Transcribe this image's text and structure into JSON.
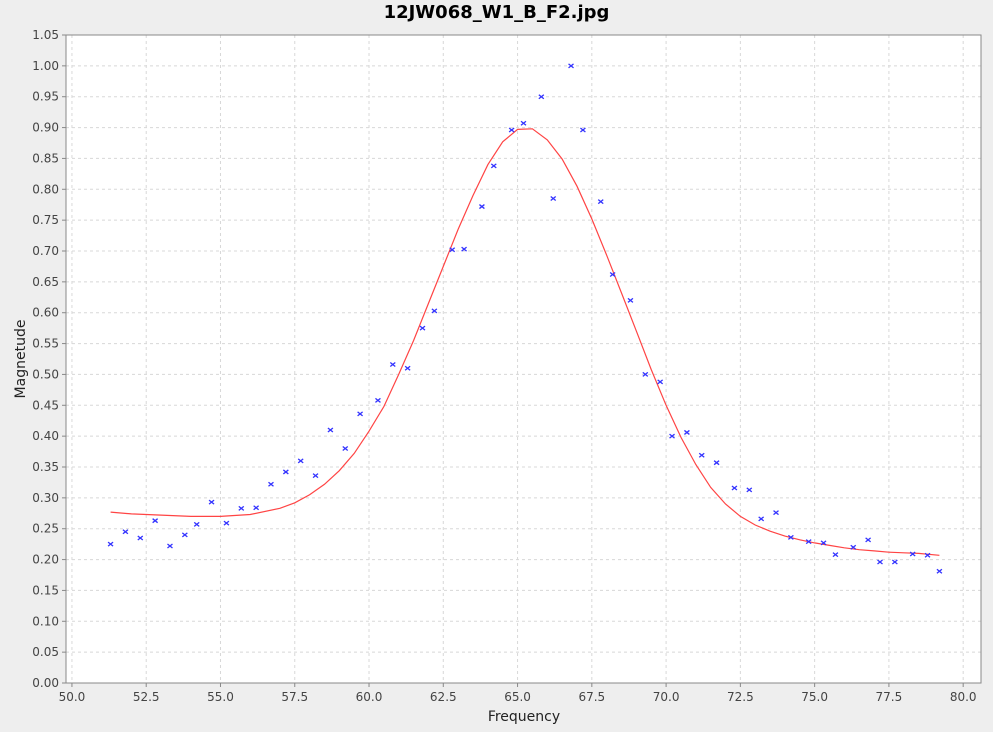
{
  "chart_data": {
    "type": "scatter",
    "title": "12JW068_W1_B_F2.jpg",
    "xlabel": "Frequency",
    "ylabel": "Magnetude",
    "xlim": [
      49.8,
      80.6
    ],
    "ylim": [
      0.0,
      1.05
    ],
    "x_ticks": [
      "50.0",
      "52.5",
      "55.0",
      "57.5",
      "60.0",
      "62.5",
      "65.0",
      "67.5",
      "70.0",
      "72.5",
      "75.0",
      "77.5",
      "80.0"
    ],
    "y_ticks": [
      "0.00",
      "0.05",
      "0.10",
      "0.15",
      "0.20",
      "0.25",
      "0.30",
      "0.35",
      "0.40",
      "0.45",
      "0.50",
      "0.55",
      "0.60",
      "0.65",
      "0.70",
      "0.75",
      "0.80",
      "0.85",
      "0.90",
      "0.95",
      "1.00",
      "1.05"
    ],
    "grid": true,
    "series": [
      {
        "kind": "points",
        "color": "#3333ff",
        "x": [
          51.3,
          51.8,
          52.3,
          52.8,
          53.3,
          53.8,
          54.2,
          54.7,
          55.2,
          55.7,
          56.2,
          56.7,
          57.2,
          57.7,
          58.2,
          58.7,
          59.2,
          59.7,
          60.3,
          60.8,
          61.3,
          61.8,
          62.2,
          62.8,
          63.2,
          63.8,
          64.2,
          64.8,
          65.2,
          65.8,
          66.2,
          66.8,
          67.2,
          67.8,
          68.2,
          68.8,
          69.3,
          69.8,
          70.2,
          70.7,
          71.2,
          71.7,
          72.3,
          72.8,
          73.2,
          73.7,
          74.2,
          74.8,
          75.3,
          75.7,
          76.3,
          76.8,
          77.2,
          77.7,
          78.3,
          78.8,
          79.2
        ],
        "y": [
          0.225,
          0.245,
          0.235,
          0.263,
          0.222,
          0.24,
          0.257,
          0.293,
          0.259,
          0.283,
          0.284,
          0.322,
          0.342,
          0.36,
          0.336,
          0.41,
          0.38,
          0.436,
          0.458,
          0.516,
          0.51,
          0.575,
          0.603,
          0.702,
          0.703,
          0.772,
          0.838,
          0.896,
          0.907,
          0.95,
          0.785,
          1.0,
          0.896,
          0.78,
          0.662,
          0.62,
          0.5,
          0.488,
          0.4,
          0.406,
          0.369,
          0.357,
          0.316,
          0.313,
          0.266,
          0.276,
          0.236,
          0.229,
          0.227,
          0.208,
          0.22,
          0.232,
          0.196,
          0.196,
          0.209,
          0.207,
          0.181
        ]
      },
      {
        "kind": "fit-line",
        "color": "#ff4444",
        "x": [
          51.3,
          52.0,
          53.0,
          54.0,
          55.0,
          56.0,
          57.0,
          57.5,
          58.0,
          58.5,
          59.0,
          59.5,
          60.0,
          60.5,
          61.0,
          61.5,
          62.0,
          62.5,
          63.0,
          63.5,
          64.0,
          64.5,
          65.0,
          65.5,
          66.0,
          66.5,
          67.0,
          67.5,
          68.0,
          68.5,
          69.0,
          69.5,
          70.0,
          70.5,
          71.0,
          71.5,
          72.0,
          72.5,
          73.0,
          73.5,
          74.0,
          74.5,
          75.0,
          75.5,
          76.0,
          76.5,
          77.0,
          77.5,
          78.0,
          78.5,
          79.2
        ],
        "y": [
          0.277,
          0.274,
          0.272,
          0.27,
          0.27,
          0.273,
          0.283,
          0.292,
          0.305,
          0.322,
          0.344,
          0.372,
          0.408,
          0.448,
          0.5,
          0.555,
          0.615,
          0.675,
          0.735,
          0.79,
          0.84,
          0.877,
          0.897,
          0.898,
          0.88,
          0.849,
          0.805,
          0.752,
          0.693,
          0.632,
          0.57,
          0.508,
          0.45,
          0.398,
          0.354,
          0.317,
          0.29,
          0.27,
          0.256,
          0.246,
          0.238,
          0.232,
          0.227,
          0.223,
          0.219,
          0.216,
          0.214,
          0.212,
          0.211,
          0.21,
          0.207
        ]
      }
    ]
  }
}
